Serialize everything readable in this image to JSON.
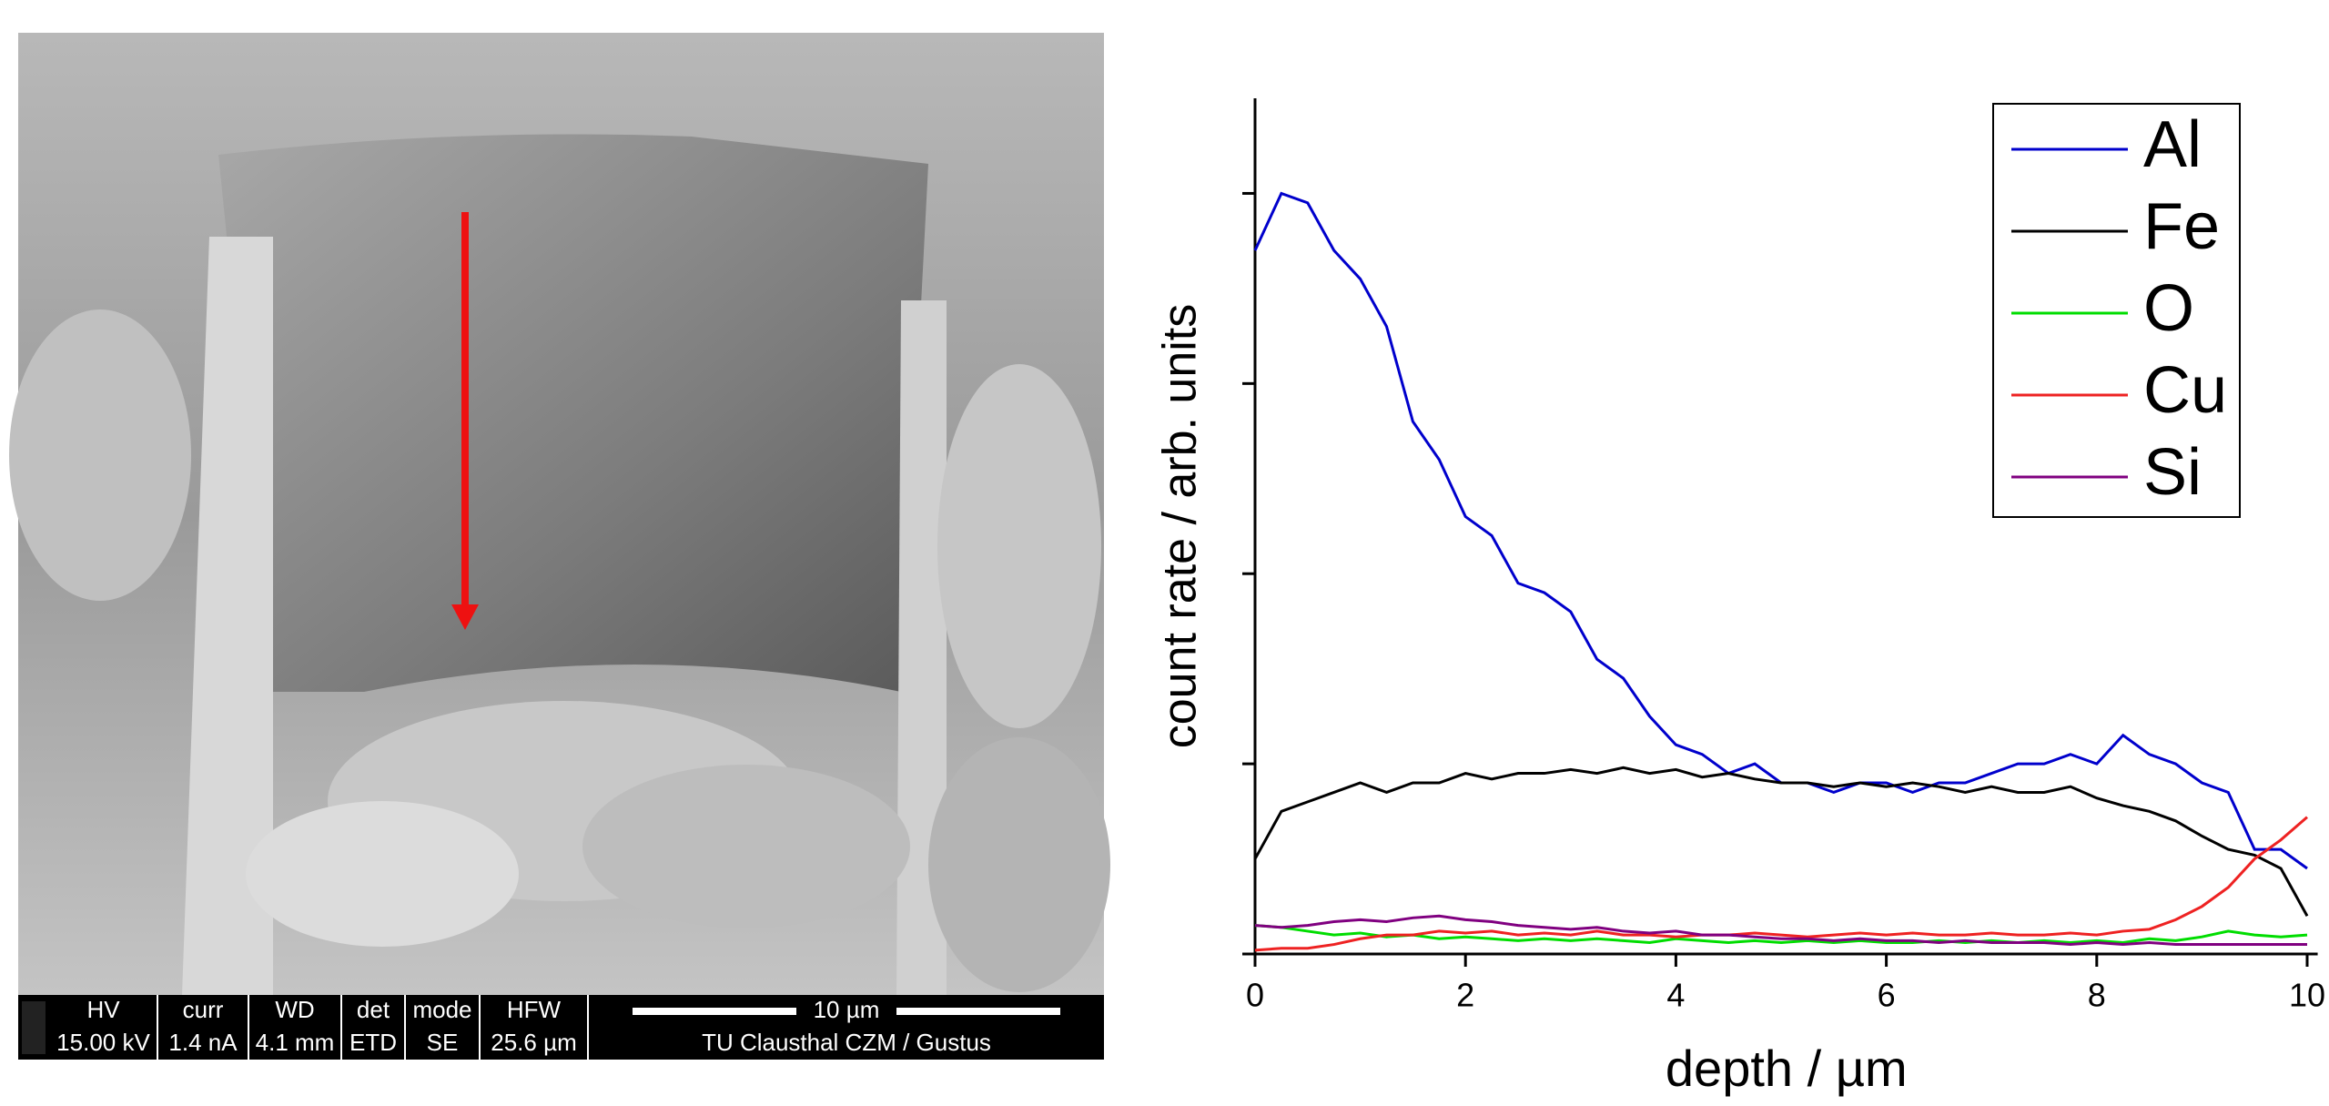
{
  "sem_info": {
    "columns": [
      {
        "header": "HV",
        "value": "15.00 kV"
      },
      {
        "header": "curr",
        "value": "1.4 nA"
      },
      {
        "header": "WD",
        "value": "4.1 mm"
      },
      {
        "header": "det",
        "value": "ETD"
      },
      {
        "header": "mode",
        "value": "SE"
      },
      {
        "header": "HFW",
        "value": "25.6 µm"
      }
    ],
    "scale_bar": "10 µm",
    "credit": "TU Clausthal CZM / Gustus"
  },
  "chart_data": {
    "type": "line",
    "xlabel": "depth / µm",
    "ylabel": "count rate / arb. units",
    "x": [
      0,
      0.25,
      0.5,
      0.75,
      1,
      1.25,
      1.5,
      1.75,
      2,
      2.25,
      2.5,
      2.75,
      3,
      3.25,
      3.5,
      3.75,
      4,
      4.25,
      4.5,
      4.75,
      5,
      5.25,
      5.5,
      5.75,
      6,
      6.25,
      6.5,
      6.75,
      7,
      7.25,
      7.5,
      7.75,
      8,
      8.25,
      8.5,
      8.75,
      9,
      9.25,
      9.5,
      9.75,
      10
    ],
    "xlim": [
      0,
      10.1
    ],
    "xticks": [
      0,
      2,
      4,
      6,
      8,
      10
    ],
    "ylim": [
      0,
      4.5
    ],
    "yticks": [
      0,
      1,
      2,
      3,
      4
    ],
    "legend": "upper right",
    "series": [
      {
        "name": "Al",
        "color": "#0000cc",
        "values": [
          3.7,
          4.0,
          3.95,
          3.7,
          3.55,
          3.3,
          2.8,
          2.6,
          2.3,
          2.2,
          1.95,
          1.9,
          1.8,
          1.55,
          1.45,
          1.25,
          1.1,
          1.05,
          0.95,
          1.0,
          0.9,
          0.9,
          0.85,
          0.9,
          0.9,
          0.85,
          0.9,
          0.9,
          0.95,
          1.0,
          1.0,
          1.05,
          1.0,
          1.15,
          1.05,
          1.0,
          0.9,
          0.85,
          0.55,
          0.55,
          0.45
        ]
      },
      {
        "name": "Fe",
        "color": "#000000",
        "values": [
          0.5,
          0.75,
          0.8,
          0.85,
          0.9,
          0.85,
          0.9,
          0.9,
          0.95,
          0.92,
          0.95,
          0.95,
          0.97,
          0.95,
          0.98,
          0.95,
          0.97,
          0.93,
          0.95,
          0.92,
          0.9,
          0.9,
          0.88,
          0.9,
          0.88,
          0.9,
          0.88,
          0.85,
          0.88,
          0.85,
          0.85,
          0.88,
          0.82,
          0.78,
          0.75,
          0.7,
          0.62,
          0.55,
          0.52,
          0.45,
          0.2
        ]
      },
      {
        "name": "O",
        "color": "#00dd00",
        "values": [
          0.15,
          0.14,
          0.12,
          0.1,
          0.11,
          0.09,
          0.1,
          0.08,
          0.09,
          0.08,
          0.07,
          0.08,
          0.07,
          0.08,
          0.07,
          0.06,
          0.08,
          0.07,
          0.06,
          0.07,
          0.06,
          0.07,
          0.06,
          0.07,
          0.06,
          0.06,
          0.07,
          0.06,
          0.07,
          0.06,
          0.07,
          0.06,
          0.07,
          0.06,
          0.08,
          0.07,
          0.09,
          0.12,
          0.1,
          0.09,
          0.1
        ]
      },
      {
        "name": "Cu",
        "color": "#ee2222",
        "values": [
          0.02,
          0.03,
          0.03,
          0.05,
          0.08,
          0.1,
          0.1,
          0.12,
          0.11,
          0.12,
          0.1,
          0.11,
          0.1,
          0.12,
          0.1,
          0.1,
          0.09,
          0.1,
          0.1,
          0.11,
          0.1,
          0.09,
          0.1,
          0.11,
          0.1,
          0.11,
          0.1,
          0.1,
          0.11,
          0.1,
          0.1,
          0.11,
          0.1,
          0.12,
          0.13,
          0.18,
          0.25,
          0.35,
          0.5,
          0.6,
          0.72
        ]
      },
      {
        "name": "Si",
        "color": "#800080",
        "values": [
          0.15,
          0.14,
          0.15,
          0.17,
          0.18,
          0.17,
          0.19,
          0.2,
          0.18,
          0.17,
          0.15,
          0.14,
          0.13,
          0.14,
          0.12,
          0.11,
          0.12,
          0.1,
          0.1,
          0.09,
          0.08,
          0.08,
          0.07,
          0.08,
          0.07,
          0.07,
          0.06,
          0.07,
          0.06,
          0.06,
          0.06,
          0.05,
          0.06,
          0.05,
          0.06,
          0.05,
          0.05,
          0.05,
          0.05,
          0.05,
          0.05
        ]
      }
    ]
  }
}
